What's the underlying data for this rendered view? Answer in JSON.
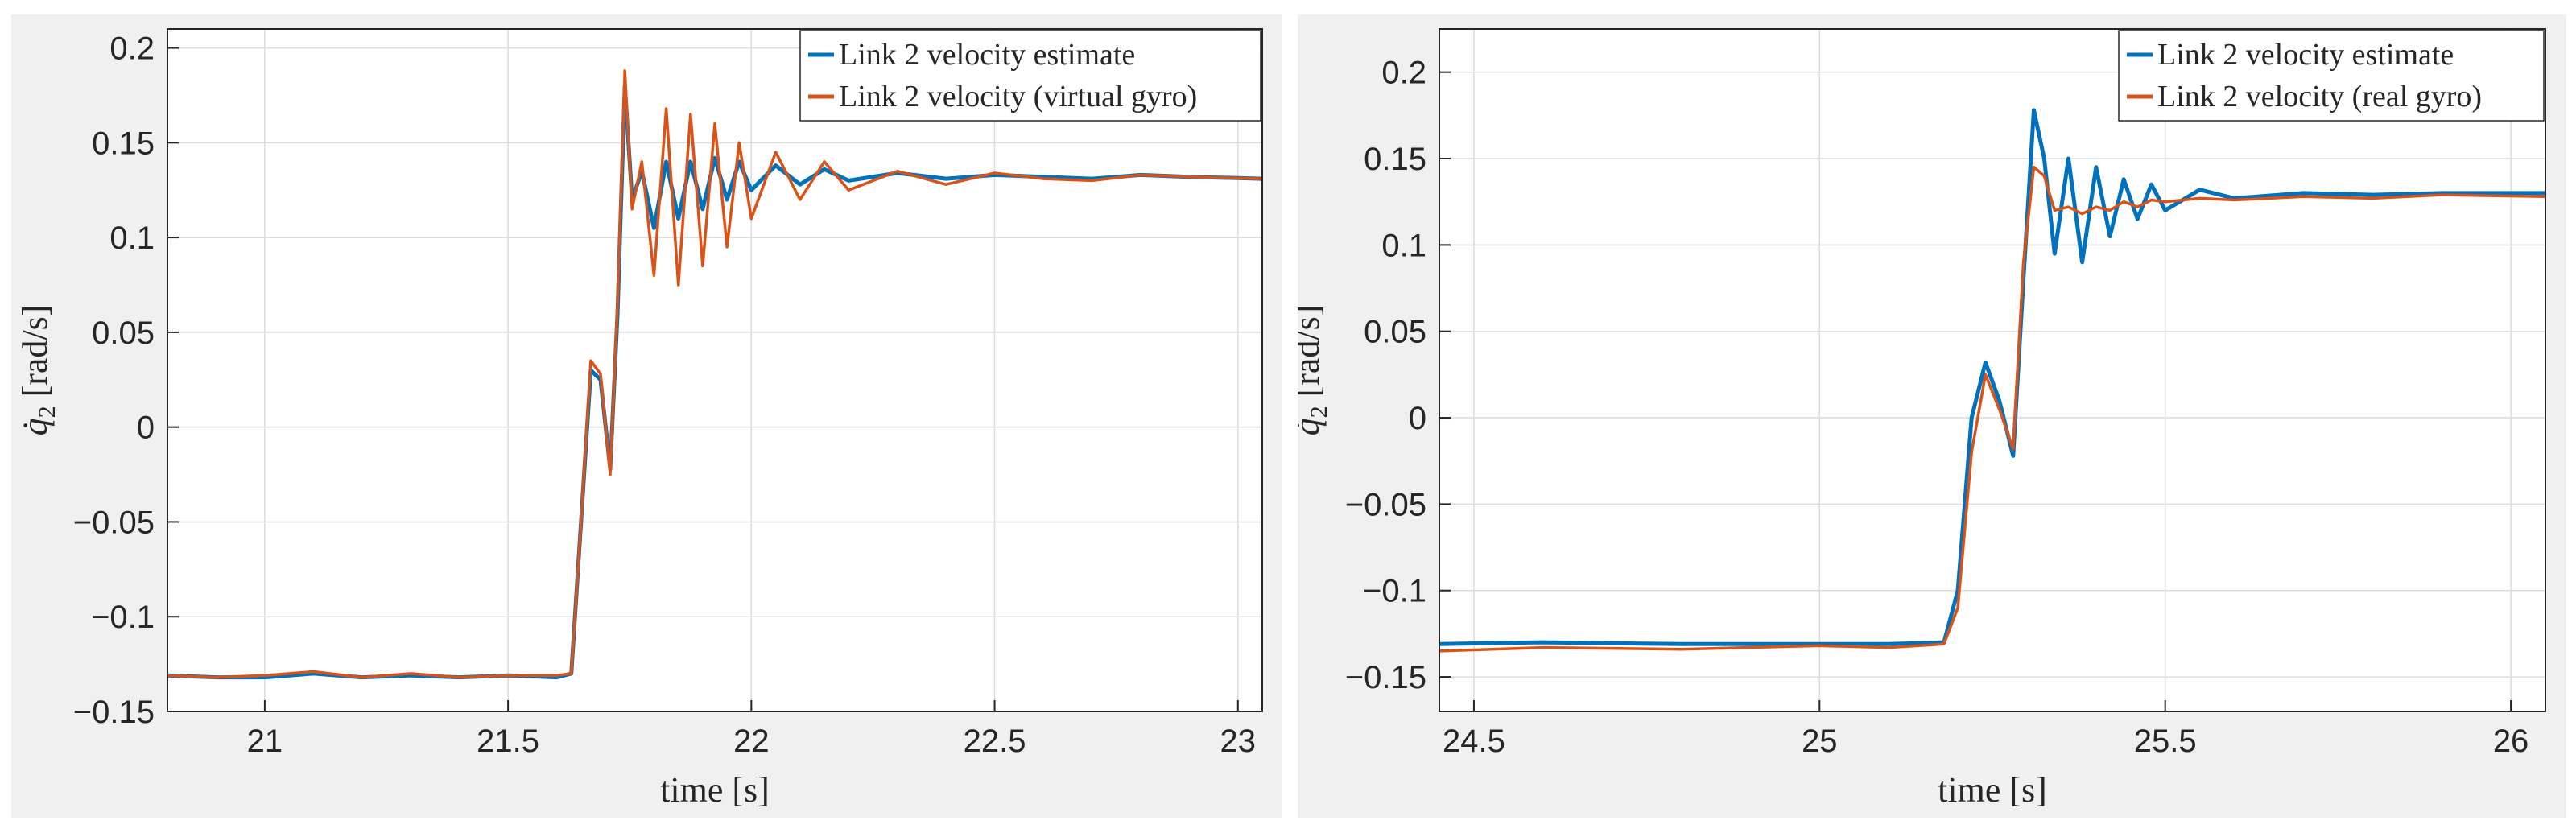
{
  "colors": {
    "estimate": "#0072BD",
    "gyro": "#D95319",
    "panel_bg": "#f0f0f0",
    "axes_bg": "#ffffff",
    "grid": "#dcdcdc",
    "axis": "#262626"
  },
  "chart_data": [
    {
      "type": "line",
      "xlabel": "time [s]",
      "ylabel": "q̇₂ [rad/s]",
      "ylabel_parts": {
        "symbol": "q̇",
        "subscript": "2",
        "unit": "[rad/s]"
      },
      "xlim": [
        20.8,
        23.05
      ],
      "ylim": [
        -0.15,
        0.21
      ],
      "xticks": [
        21,
        21.5,
        22,
        22.5,
        23
      ],
      "xtick_labels": [
        "21",
        "21.5",
        "22",
        "22.5",
        "23"
      ],
      "yticks": [
        -0.15,
        -0.1,
        -0.05,
        0,
        0.05,
        0.1,
        0.15,
        0.2
      ],
      "ytick_labels": [
        "−0.15",
        "−0.1",
        "−0.05",
        "0",
        "0.05",
        "0.1",
        "0.15",
        "0.2"
      ],
      "grid": true,
      "legend_position": "top-right",
      "series": [
        {
          "name": "Link 2 velocity estimate",
          "color": "#0072BD",
          "x": [
            20.8,
            20.9,
            21.0,
            21.1,
            21.2,
            21.3,
            21.4,
            21.5,
            21.6,
            21.63,
            21.65,
            21.67,
            21.69,
            21.71,
            21.725,
            21.74,
            21.755,
            21.775,
            21.8,
            21.825,
            21.85,
            21.875,
            21.9,
            21.925,
            21.95,
            21.975,
            22.0,
            22.05,
            22.1,
            22.15,
            22.2,
            22.3,
            22.4,
            22.5,
            22.6,
            22.7,
            22.8,
            22.9,
            23.05
          ],
          "y": [
            -0.131,
            -0.132,
            -0.132,
            -0.13,
            -0.132,
            -0.131,
            -0.132,
            -0.131,
            -0.132,
            -0.13,
            -0.05,
            0.03,
            0.025,
            -0.022,
            0.06,
            0.18,
            0.12,
            0.135,
            0.105,
            0.14,
            0.11,
            0.14,
            0.115,
            0.142,
            0.12,
            0.14,
            0.125,
            0.138,
            0.128,
            0.136,
            0.13,
            0.134,
            0.131,
            0.133,
            0.132,
            0.131,
            0.133,
            0.132,
            0.131
          ]
        },
        {
          "name": "Link 2 velocity (virtual gyro)",
          "color": "#D95319",
          "x": [
            20.8,
            20.9,
            21.0,
            21.1,
            21.2,
            21.3,
            21.4,
            21.5,
            21.6,
            21.63,
            21.65,
            21.67,
            21.69,
            21.71,
            21.725,
            21.74,
            21.755,
            21.775,
            21.8,
            21.825,
            21.85,
            21.875,
            21.9,
            21.925,
            21.95,
            21.975,
            22.0,
            22.05,
            22.1,
            22.15,
            22.2,
            22.3,
            22.4,
            22.5,
            22.6,
            22.7,
            22.8,
            22.9,
            23.05
          ],
          "y": [
            -0.131,
            -0.132,
            -0.131,
            -0.129,
            -0.132,
            -0.13,
            -0.132,
            -0.131,
            -0.131,
            -0.13,
            -0.05,
            0.035,
            0.028,
            -0.025,
            0.065,
            0.188,
            0.115,
            0.14,
            0.08,
            0.168,
            0.075,
            0.165,
            0.085,
            0.16,
            0.095,
            0.15,
            0.11,
            0.145,
            0.12,
            0.14,
            0.125,
            0.135,
            0.128,
            0.134,
            0.131,
            0.13,
            0.133,
            0.132,
            0.131
          ]
        }
      ]
    },
    {
      "type": "line",
      "xlabel": "time [s]",
      "ylabel": "q̇₂ [rad/s]",
      "ylabel_parts": {
        "symbol": "q̇",
        "subscript": "2",
        "unit": "[rad/s]"
      },
      "xlim": [
        24.45,
        26.05
      ],
      "ylim": [
        -0.17,
        0.225
      ],
      "xticks": [
        24.5,
        25,
        25.5,
        26
      ],
      "xtick_labels": [
        "24.5",
        "25",
        "25.5",
        "26"
      ],
      "yticks": [
        -0.15,
        -0.1,
        -0.05,
        0,
        0.05,
        0.1,
        0.15,
        0.2
      ],
      "ytick_labels": [
        "−0.15",
        "−0.1",
        "−0.05",
        "0",
        "0.05",
        "0.1",
        "0.15",
        "0.2"
      ],
      "grid": true,
      "legend_position": "top-right",
      "series": [
        {
          "name": "Link 2 velocity estimate",
          "color": "#0072BD",
          "x": [
            24.45,
            24.6,
            24.8,
            25.0,
            25.1,
            25.18,
            25.2,
            25.22,
            25.24,
            25.26,
            25.28,
            25.295,
            25.31,
            25.325,
            25.34,
            25.36,
            25.38,
            25.4,
            25.42,
            25.44,
            25.46,
            25.48,
            25.5,
            25.55,
            25.6,
            25.7,
            25.8,
            25.9,
            26.05
          ],
          "y": [
            -0.131,
            -0.13,
            -0.131,
            -0.131,
            -0.131,
            -0.13,
            -0.1,
            0.0,
            0.032,
            0.01,
            -0.022,
            0.08,
            0.178,
            0.15,
            0.095,
            0.15,
            0.09,
            0.145,
            0.105,
            0.138,
            0.115,
            0.135,
            0.12,
            0.132,
            0.127,
            0.13,
            0.129,
            0.13,
            0.13
          ]
        },
        {
          "name": "Link 2 velocity (real gyro)",
          "color": "#D95319",
          "x": [
            24.45,
            24.6,
            24.8,
            25.0,
            25.1,
            25.18,
            25.2,
            25.22,
            25.24,
            25.26,
            25.28,
            25.295,
            25.31,
            25.325,
            25.34,
            25.36,
            25.38,
            25.4,
            25.42,
            25.44,
            25.46,
            25.48,
            25.5,
            25.55,
            25.6,
            25.7,
            25.8,
            25.9,
            26.05
          ],
          "y": [
            -0.135,
            -0.133,
            -0.134,
            -0.132,
            -0.133,
            -0.131,
            -0.11,
            -0.02,
            0.025,
            0.005,
            -0.018,
            0.09,
            0.145,
            0.14,
            0.12,
            0.122,
            0.118,
            0.122,
            0.12,
            0.125,
            0.122,
            0.126,
            0.125,
            0.127,
            0.126,
            0.128,
            0.127,
            0.129,
            0.128
          ]
        }
      ]
    }
  ]
}
